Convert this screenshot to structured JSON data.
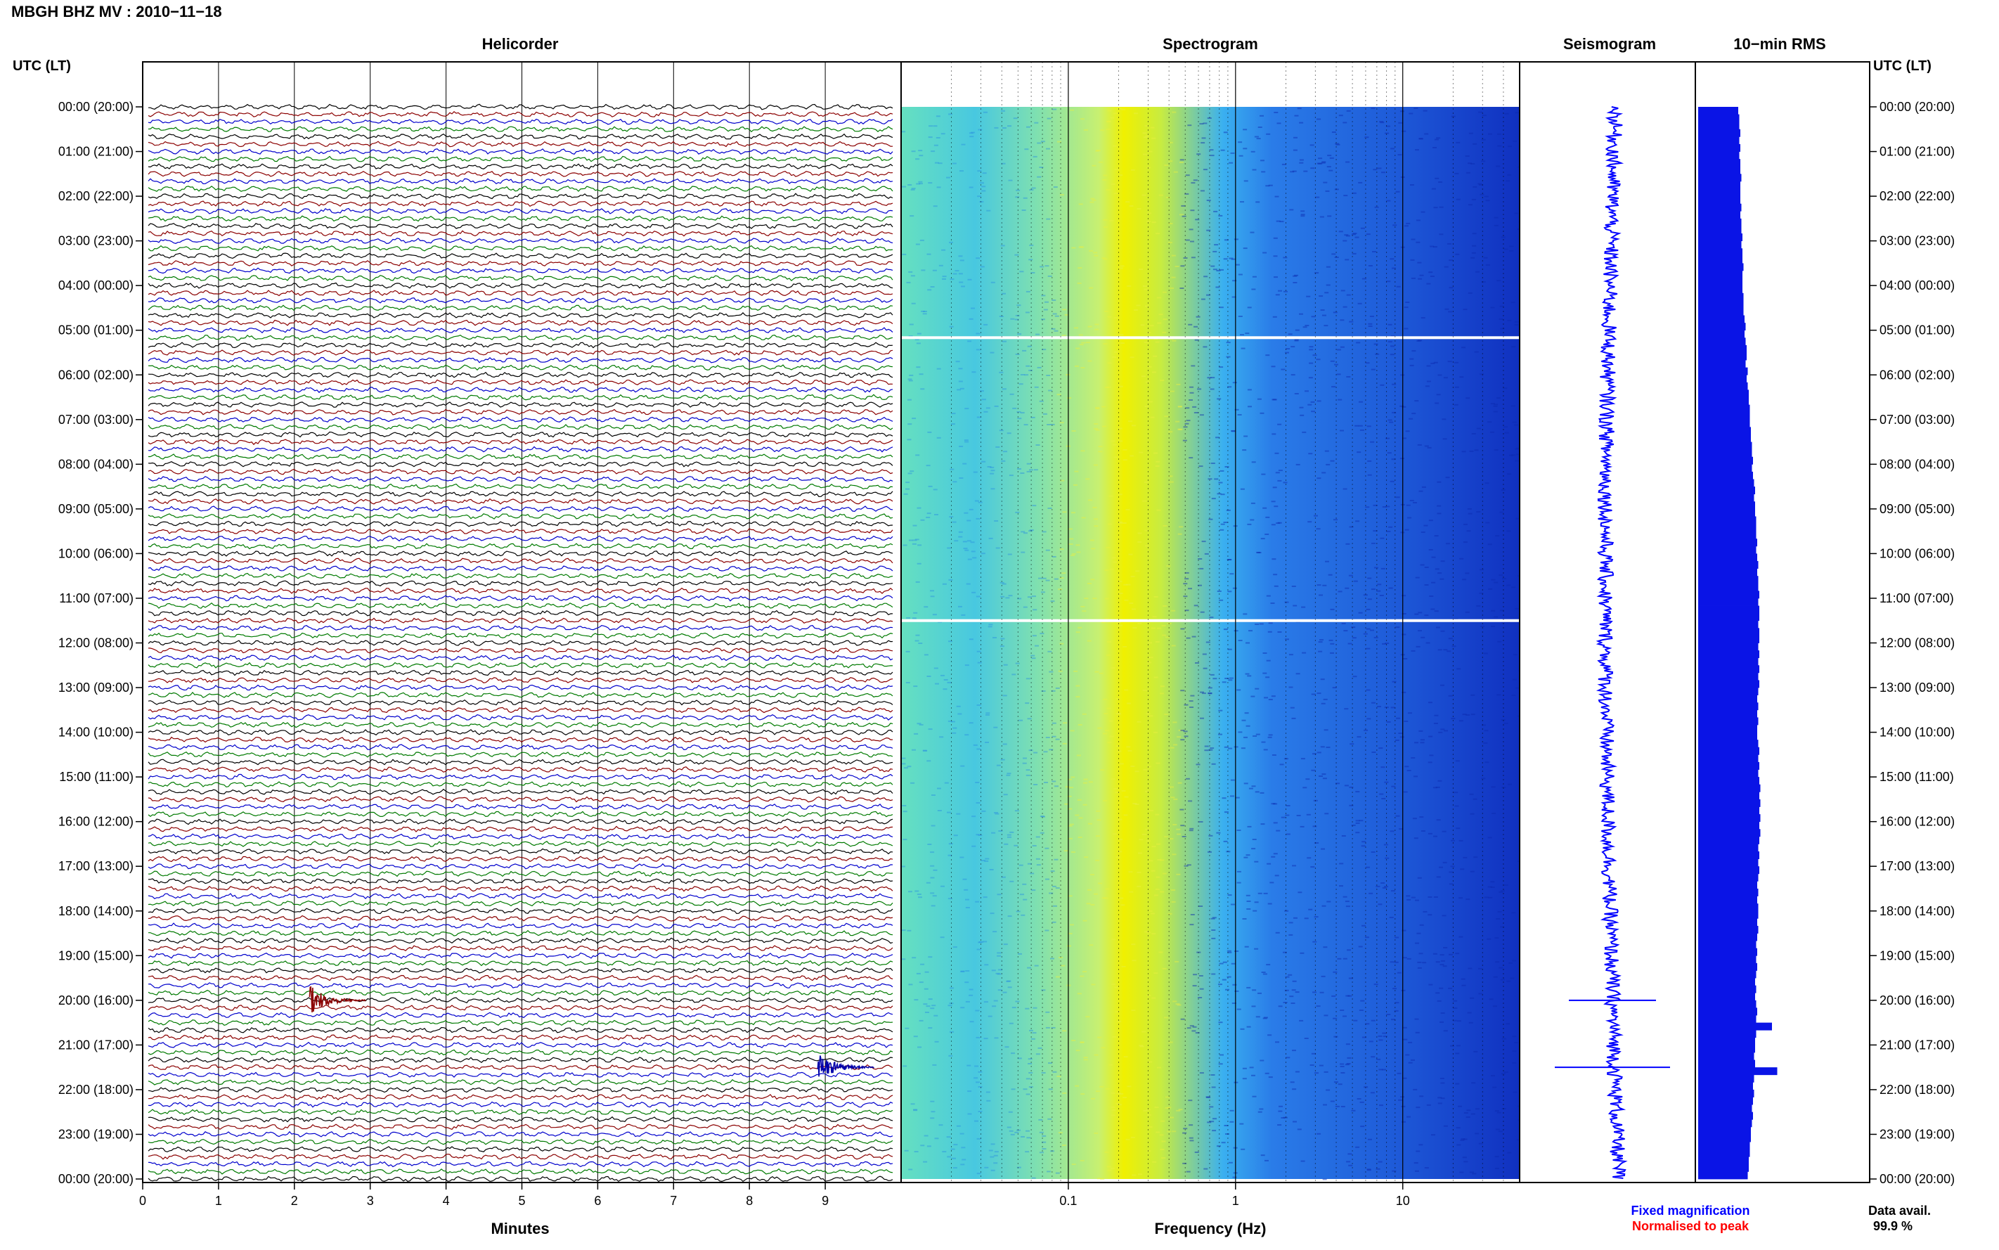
{
  "header": {
    "title": "MBGH BHZ MV : 2010−11−18"
  },
  "panels": {
    "helicorder": "Helicorder",
    "spectrogram": "Spectrogram",
    "seismogram": "Seismogram",
    "rms": "10−min RMS"
  },
  "axes": {
    "left_time_label": "UTC (LT)",
    "right_time_label": "UTC (LT)",
    "minutes_label": "Minutes",
    "frequency_label": "Frequency (Hz)"
  },
  "footer": {
    "fixed_magnification": "Fixed magnification",
    "normalised_to_peak": "Normalised to peak",
    "data_avail_label": "Data avail.",
    "data_avail_value": "99.9 %"
  },
  "colors": {
    "helicorder_trace_cycle": [
      "#000000",
      "#8b0000",
      "#0000cc",
      "#007a00"
    ],
    "spectrogram_low": "#66e0c0",
    "spectrogram_peak": "#f0f000",
    "spectrogram_high": "#1a3cc8",
    "seismogram": "#0000ff",
    "rms_bar": "#0a14e6",
    "fixed_magnification": "#0000ff",
    "normalised_to_peak": "#ff0000"
  },
  "chart_data": [
    {
      "type": "line",
      "title": "Helicorder",
      "xlabel": "Minutes",
      "ylabel": "UTC (LT)",
      "x_ticks": [
        0,
        1,
        2,
        3,
        4,
        5,
        6,
        7,
        8,
        9
      ],
      "xlim": [
        0,
        10
      ],
      "rows_per_hour": 6,
      "y_ticks": [
        "00:00 (20:00)",
        "01:00 (21:00)",
        "02:00 (22:00)",
        "03:00 (23:00)",
        "04:00 (00:00)",
        "05:00 (01:00)",
        "06:00 (02:00)",
        "07:00 (03:00)",
        "08:00 (04:00)",
        "09:00 (05:00)",
        "10:00 (06:00)",
        "11:00 (07:00)",
        "12:00 (08:00)",
        "13:00 (09:00)",
        "14:00 (10:00)",
        "15:00 (11:00)",
        "16:00 (12:00)",
        "17:00 (13:00)",
        "18:00 (14:00)",
        "19:00 (15:00)",
        "20:00 (16:00)",
        "21:00 (17:00)",
        "22:00 (18:00)",
        "23:00 (19:00)",
        "00:00 (20:00)"
      ],
      "events": [
        {
          "time_utc": "20:00",
          "minute": 2.2
        },
        {
          "time_utc": "21:30",
          "minute": 8.9
        }
      ]
    },
    {
      "type": "heatmap",
      "title": "Spectrogram",
      "xlabel": "Frequency (Hz)",
      "x_scale": "log",
      "xlim": [
        0.01,
        50
      ],
      "x_ticks": [
        0.1,
        1,
        10
      ],
      "x_tick_labels": [
        "0.1",
        "1",
        "10"
      ],
      "peak_frequency_hz": 0.3,
      "gaps_utc": [
        "05:10",
        "11:30"
      ]
    },
    {
      "type": "line",
      "title": "Seismogram",
      "legend": [
        "Fixed magnification",
        "Normalised to peak"
      ]
    },
    {
      "type": "bar",
      "title": "10−min RMS",
      "orientation": "horizontal",
      "bins_per_hour": 6,
      "values": [
        0.38,
        0.39,
        0.39,
        0.4,
        0.39,
        0.4,
        0.39,
        0.4,
        0.4,
        0.41,
        0.4,
        0.4,
        0.4,
        0.41,
        0.4,
        0.41,
        0.41,
        0.42,
        0.41,
        0.42,
        0.42,
        0.43,
        0.42,
        0.42,
        0.42,
        0.43,
        0.43,
        0.43,
        0.44,
        0.45,
        0.44,
        0.45,
        0.46,
        0.46,
        0.45,
        0.47,
        0.46,
        0.47,
        0.48,
        0.48,
        0.49,
        0.49,
        0.49,
        0.5,
        0.5,
        0.51,
        0.51,
        0.52,
        0.51,
        0.52,
        0.53,
        0.54,
        0.53,
        0.54,
        0.54,
        0.55,
        0.55,
        0.55,
        0.56,
        0.55,
        0.56,
        0.57,
        0.56,
        0.57,
        0.57,
        0.58,
        0.57,
        0.58,
        0.58,
        0.57,
        0.58,
        0.58,
        0.57,
        0.58,
        0.57,
        0.58,
        0.57,
        0.58,
        0.57,
        0.56,
        0.57,
        0.56,
        0.57,
        0.56,
        0.56,
        0.57,
        0.58,
        0.57,
        0.58,
        0.57,
        0.58,
        0.59,
        0.58,
        0.59,
        0.58,
        0.59,
        0.58,
        0.59,
        0.58,
        0.57,
        0.58,
        0.57,
        0.58,
        0.57,
        0.56,
        0.57,
        0.56,
        0.57,
        0.57,
        0.56,
        0.57,
        0.56,
        0.55,
        0.56,
        0.55,
        0.56,
        0.55,
        0.54,
        0.55,
        0.54,
        0.55,
        0.56,
        0.55,
        0.7,
        0.55,
        0.54,
        0.54,
        0.53,
        0.54,
        0.75,
        0.53,
        0.52,
        0.53,
        0.52,
        0.51,
        0.52,
        0.51,
        0.5,
        0.5,
        0.49,
        0.49,
        0.48,
        0.48,
        0.47
      ]
    }
  ]
}
